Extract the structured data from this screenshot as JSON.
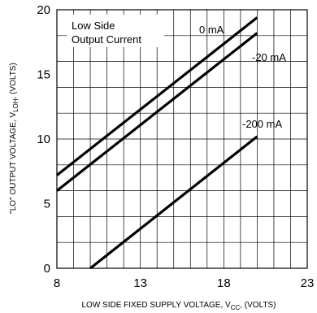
{
  "chart_data": {
    "type": "line",
    "title": "",
    "xlabel": {
      "prefix": "LOW SIDE FIXED SUPPLY VOLTAGE, V",
      "sub": "CC",
      "suffix": ", (VOLTS)"
    },
    "ylabel": {
      "prefix": "\"LO\" OUTPUT VOLTAGE, V",
      "sub": "LOH",
      "suffix": ", (VOLTS)"
    },
    "xlim": [
      8,
      23
    ],
    "ylim": [
      0,
      20
    ],
    "xticks": [
      "8",
      "13",
      "18",
      "23"
    ],
    "yticks": [
      "0",
      "5",
      "10",
      "15",
      "20"
    ],
    "grid": true,
    "legend_title": [
      "Low Side",
      "Output Current"
    ],
    "series": [
      {
        "name": "0 mA",
        "x": [
          8,
          20
        ],
        "y": [
          7.2,
          19.4
        ]
      },
      {
        "name": "-20 mA",
        "x": [
          8,
          20
        ],
        "y": [
          6.0,
          18.2
        ]
      },
      {
        "name": "-200 mA",
        "x": [
          10,
          20
        ],
        "y": [
          0,
          10.2
        ]
      }
    ]
  }
}
